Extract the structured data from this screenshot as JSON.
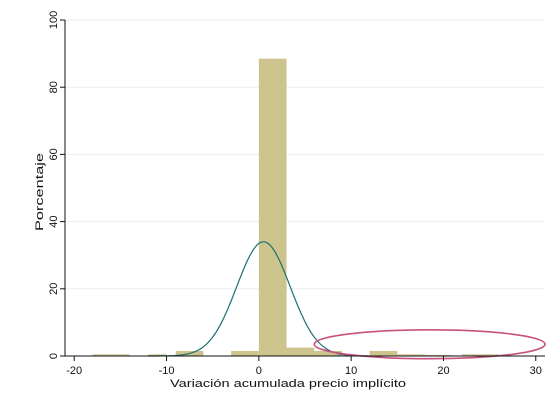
{
  "chart_data": {
    "type": "bar",
    "title": "",
    "xlabel": "Variación acumulada precio implícito",
    "ylabel": "Porcentaje",
    "xlim": [
      -21,
      31
    ],
    "ylim": [
      0,
      100
    ],
    "xticks": [
      -20,
      -10,
      0,
      10,
      20,
      30
    ],
    "yticks": [
      0,
      20,
      40,
      60,
      80,
      100
    ],
    "grid": true,
    "bar_color": "#cdc38d",
    "curve_color": "#1f6f6f",
    "annotation_color": "#c8527e",
    "bins": [
      {
        "x0": -18,
        "x1": -14,
        "value": 0.5
      },
      {
        "x0": -12,
        "x1": -10,
        "value": 0.5
      },
      {
        "x0": -9,
        "x1": -6,
        "value": 1.5
      },
      {
        "x0": -3,
        "x1": 0,
        "value": 1.5
      },
      {
        "x0": 0,
        "x1": 3,
        "value": 88.5
      },
      {
        "x0": 3,
        "x1": 6,
        "value": 2.5
      },
      {
        "x0": 6,
        "x1": 9,
        "value": 1.5
      },
      {
        "x0": 12,
        "x1": 15,
        "value": 1.5
      },
      {
        "x0": 15,
        "x1": 18,
        "value": 0.5
      },
      {
        "x0": 18,
        "x1": 21,
        "value": 0.3
      },
      {
        "x0": 22,
        "x1": 26,
        "value": 0.5
      }
    ],
    "density_curve": {
      "mean": 0.5,
      "peak": 34,
      "sd": 2.9
    },
    "annotation": {
      "cx": 18.5,
      "cy": 3.5,
      "rx": 12.5,
      "ry": 4.3
    }
  }
}
